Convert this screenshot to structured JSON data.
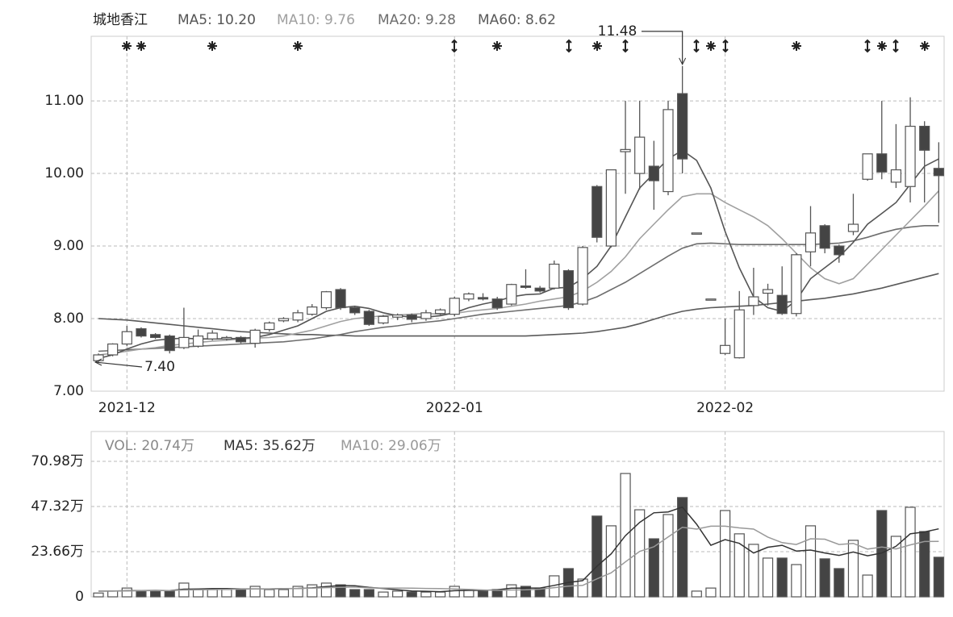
{
  "chart_data": [
    {
      "type": "candlestick",
      "title": "城地香江",
      "categories": [
        null,
        null,
        "2021-12",
        null,
        null,
        null,
        null,
        null,
        null,
        null,
        null,
        null,
        null,
        null,
        null,
        null,
        null,
        null,
        null,
        null,
        null,
        null,
        null,
        null,
        null,
        "2022-01",
        null,
        null,
        null,
        null,
        null,
        null,
        null,
        null,
        null,
        null,
        null,
        null,
        null,
        null,
        null,
        null,
        null,
        null,
        "2022-02",
        null,
        null,
        null,
        null,
        null,
        null,
        null,
        null,
        null,
        null,
        null,
        null,
        null,
        null,
        null
      ],
      "open": [
        7.42,
        7.5,
        7.65,
        7.86,
        7.78,
        7.76,
        7.6,
        7.62,
        7.72,
        7.72,
        7.74,
        7.66,
        7.85,
        7.97,
        7.98,
        8.06,
        8.15,
        8.4,
        8.15,
        8.1,
        7.94,
        8.02,
        8.05,
        8.0,
        8.07,
        8.06,
        8.27,
        8.29,
        8.27,
        8.2,
        8.45,
        8.42,
        8.42,
        8.66,
        8.2,
        9.82,
        9.0,
        10.3,
        10.0,
        10.1,
        9.75,
        11.1,
        9.18,
        8.27,
        7.52,
        7.46,
        8.18,
        8.35,
        8.32,
        8.07,
        8.92,
        9.28,
        9.0,
        9.2,
        9.92,
        10.27,
        9.88,
        9.82,
        10.65,
        10.07
      ],
      "high": [
        7.52,
        7.66,
        7.9,
        7.88,
        7.8,
        7.78,
        8.15,
        7.85,
        7.84,
        7.76,
        7.76,
        7.86,
        7.96,
        8.02,
        8.12,
        8.2,
        8.38,
        8.42,
        8.17,
        8.12,
        8.05,
        8.07,
        8.07,
        8.12,
        8.14,
        8.3,
        8.36,
        8.35,
        8.3,
        8.48,
        8.68,
        8.45,
        8.8,
        8.68,
        9.0,
        9.84,
        10.05,
        11.0,
        11.0,
        10.45,
        11.0,
        11.48,
        9.18,
        8.27,
        8.0,
        8.38,
        8.7,
        8.48,
        8.72,
        8.9,
        9.55,
        9.3,
        9.02,
        9.72,
        10.27,
        11.0,
        10.68,
        11.05,
        10.72,
        10.43
      ],
      "low": [
        7.4,
        7.48,
        7.62,
        7.74,
        7.72,
        7.52,
        7.58,
        7.6,
        7.7,
        7.7,
        7.66,
        7.6,
        7.82,
        7.95,
        7.95,
        8.04,
        8.12,
        8.12,
        8.05,
        7.9,
        7.92,
        7.98,
        7.95,
        7.97,
        8.05,
        8.03,
        8.24,
        8.25,
        8.12,
        8.18,
        8.41,
        8.36,
        8.4,
        8.12,
        8.18,
        9.05,
        8.98,
        9.72,
        9.78,
        9.5,
        9.7,
        10.0,
        9.18,
        8.27,
        7.5,
        7.45,
        8.05,
        8.18,
        8.05,
        8.03,
        8.72,
        8.9,
        8.77,
        9.15,
        9.9,
        9.92,
        9.8,
        9.6,
        9.6,
        9.32
      ],
      "close": [
        7.5,
        7.65,
        7.82,
        7.76,
        7.74,
        7.56,
        7.74,
        7.76,
        7.8,
        7.74,
        7.68,
        7.84,
        7.94,
        8.0,
        8.08,
        8.16,
        8.37,
        8.15,
        8.08,
        7.92,
        8.03,
        8.05,
        7.99,
        8.08,
        8.12,
        8.28,
        8.34,
        8.27,
        8.15,
        8.47,
        8.43,
        8.38,
        8.75,
        8.15,
        8.98,
        9.12,
        10.05,
        10.33,
        10.5,
        9.9,
        10.88,
        10.2,
        9.18,
        8.27,
        7.63,
        8.12,
        8.3,
        8.4,
        8.07,
        8.88,
        9.18,
        8.97,
        8.88,
        9.3,
        10.27,
        10.02,
        10.05,
        10.65,
        10.32,
        9.97
      ],
      "up_color": "#ffffff",
      "down_color": "#444444",
      "candle_edge": "#555555",
      "series": [
        {
          "name": "MA5: 10.20",
          "color": "#555555",
          "values": [
            7.45,
            7.5,
            7.58,
            7.65,
            7.7,
            7.72,
            7.73,
            7.72,
            7.72,
            7.72,
            7.73,
            7.74,
            7.78,
            7.84,
            7.9,
            8.0,
            8.1,
            8.15,
            8.17,
            8.14,
            8.08,
            8.04,
            8.02,
            8.02,
            8.04,
            8.08,
            8.15,
            8.2,
            8.24,
            8.3,
            8.33,
            8.34,
            8.42,
            8.43,
            8.55,
            8.72,
            9.0,
            9.4,
            9.8,
            10.0,
            10.2,
            10.32,
            10.18,
            9.8,
            9.2,
            8.7,
            8.3,
            8.15,
            8.1,
            8.25,
            8.55,
            8.7,
            8.85,
            9.05,
            9.3,
            9.45,
            9.6,
            9.85,
            10.1,
            10.2
          ]
        },
        {
          "name": "MA10: 9.76",
          "color": "#a0a0a0",
          "values": [
            7.5,
            7.52,
            7.55,
            7.58,
            7.6,
            7.63,
            7.65,
            7.67,
            7.69,
            7.7,
            7.72,
            7.73,
            7.74,
            7.76,
            7.8,
            7.84,
            7.9,
            7.96,
            8.0,
            8.02,
            8.04,
            8.05,
            8.06,
            8.07,
            8.06,
            8.07,
            8.1,
            8.12,
            8.14,
            8.17,
            8.2,
            8.24,
            8.27,
            8.3,
            8.38,
            8.5,
            8.65,
            8.85,
            9.1,
            9.3,
            9.5,
            9.68,
            9.72,
            9.72,
            9.6,
            9.5,
            9.4,
            9.28,
            9.1,
            8.9,
            8.7,
            8.55,
            8.48,
            8.55,
            8.75,
            8.95,
            9.15,
            9.35,
            9.55,
            9.76
          ]
        },
        {
          "name": "MA20: 9.28",
          "color": "#6e6e6e",
          "values": [
            7.55,
            7.56,
            7.57,
            7.58,
            7.59,
            7.6,
            7.61,
            7.62,
            7.63,
            7.64,
            7.65,
            7.66,
            7.67,
            7.68,
            7.7,
            7.72,
            7.75,
            7.78,
            7.82,
            7.85,
            7.88,
            7.9,
            7.93,
            7.95,
            7.97,
            8.0,
            8.03,
            8.06,
            8.08,
            8.1,
            8.12,
            8.14,
            8.16,
            8.18,
            8.23,
            8.3,
            8.4,
            8.5,
            8.62,
            8.74,
            8.86,
            8.97,
            9.03,
            9.04,
            9.03,
            9.02,
            9.02,
            9.02,
            9.02,
            9.02,
            9.02,
            9.03,
            9.04,
            9.07,
            9.12,
            9.18,
            9.23,
            9.26,
            9.28,
            9.28
          ]
        },
        {
          "name": "MA60: 8.62",
          "color": "#5a5a5a",
          "values": [
            8.0,
            7.99,
            7.98,
            7.96,
            7.94,
            7.92,
            7.9,
            7.88,
            7.86,
            7.84,
            7.82,
            7.81,
            7.8,
            7.79,
            7.78,
            7.78,
            7.77,
            7.77,
            7.76,
            7.76,
            7.76,
            7.76,
            7.76,
            7.76,
            7.76,
            7.76,
            7.76,
            7.76,
            7.76,
            7.76,
            7.76,
            7.77,
            7.78,
            7.79,
            7.8,
            7.82,
            7.85,
            7.88,
            7.93,
            7.99,
            8.05,
            8.1,
            8.13,
            8.15,
            8.16,
            8.17,
            8.18,
            8.2,
            8.22,
            8.24,
            8.26,
            8.28,
            8.31,
            8.34,
            8.38,
            8.42,
            8.47,
            8.52,
            8.57,
            8.62
          ]
        }
      ],
      "annotations": [
        {
          "value": 11.48,
          "label": "11.48"
        },
        {
          "value": 7.4,
          "label": "7.40"
        }
      ],
      "ylim": [
        7,
        11.89
      ],
      "yticks": [
        {
          "value": 7,
          "label": "7.00"
        },
        {
          "value": 8,
          "label": "8.00"
        },
        {
          "value": 9,
          "label": "9.00"
        },
        {
          "value": 10,
          "label": "10.00"
        },
        {
          "value": 11,
          "label": "11.00"
        }
      ],
      "grid": true
    },
    {
      "type": "volume",
      "series": [
        {
          "name": "VOL: 20.74万",
          "color": "#888888",
          "values": [
            2,
            3,
            4.6,
            3,
            3,
            3,
            7.2,
            3.8,
            3.8,
            3.8,
            3.8,
            5.5,
            3.8,
            3.8,
            5.5,
            6.3,
            7.2,
            6.3,
            3.8,
            3.8,
            2.5,
            3,
            2.5,
            2.5,
            2.5,
            5.5,
            3.8,
            3,
            3.8,
            6.3,
            5.5,
            4.6,
            11,
            14.8,
            9.3,
            42.3,
            37.2,
            64.6,
            45.6,
            30.4,
            43.1,
            52,
            3,
            4.6,
            45.2,
            33,
            27.5,
            20.3,
            20.3,
            16.9,
            37.2,
            19.9,
            14.8,
            29.6,
            11.4,
            45.2,
            31.7,
            46.9,
            34.2,
            20.74
          ]
        },
        {
          "name": "MA5: 35.62万",
          "color": "#333333",
          "values": [
            3,
            3,
            3.2,
            3.3,
            3.4,
            3.3,
            4,
            4.1,
            4.3,
            4.3,
            4.1,
            4.2,
            4.1,
            4.3,
            4.4,
            4.7,
            5.4,
            5.9,
            5.8,
            5,
            4.4,
            3.7,
            3.1,
            2.9,
            2.7,
            3.2,
            3.4,
            3.4,
            3.7,
            4.5,
            4.6,
            4.6,
            6,
            7.5,
            8.5,
            16,
            22.5,
            32,
            39,
            44,
            44.5,
            47,
            38,
            27,
            30,
            28,
            23,
            26,
            27,
            24,
            24.5,
            23,
            21.7,
            23.5,
            21.5,
            23,
            26.5,
            33,
            34,
            35.62
          ]
        },
        {
          "name": "MA10: 29.06万",
          "color": "#999999",
          "values": [
            3,
            3,
            3.1,
            3.2,
            3.3,
            3.3,
            3.6,
            3.7,
            3.8,
            3.9,
            4,
            4.1,
            4.2,
            4.3,
            4.4,
            4.5,
            4.8,
            5,
            5.1,
            4.7,
            4.6,
            4.6,
            4.5,
            4.4,
            4.3,
            4.1,
            3.9,
            3.6,
            3.4,
            3.6,
            3.7,
            4,
            4.8,
            5.6,
            6,
            9.4,
            12.6,
            18.3,
            23.8,
            26.2,
            31.4,
            36.4,
            35.5,
            37,
            37,
            36.1,
            35.5,
            31.3,
            28.4,
            27.4,
            30.4,
            30.2,
            27.4,
            28,
            25,
            26.1,
            25.1,
            27.2,
            29,
            29.06
          ]
        }
      ],
      "ylim": [
        0,
        86.6
      ],
      "yticks": [
        0,
        {
          "value": 23.66,
          "label": "23.66万"
        },
        {
          "value": 47.32,
          "label": "47.32万"
        },
        {
          "value": 70.98,
          "label": "70.98万"
        }
      ],
      "grid": true
    }
  ]
}
